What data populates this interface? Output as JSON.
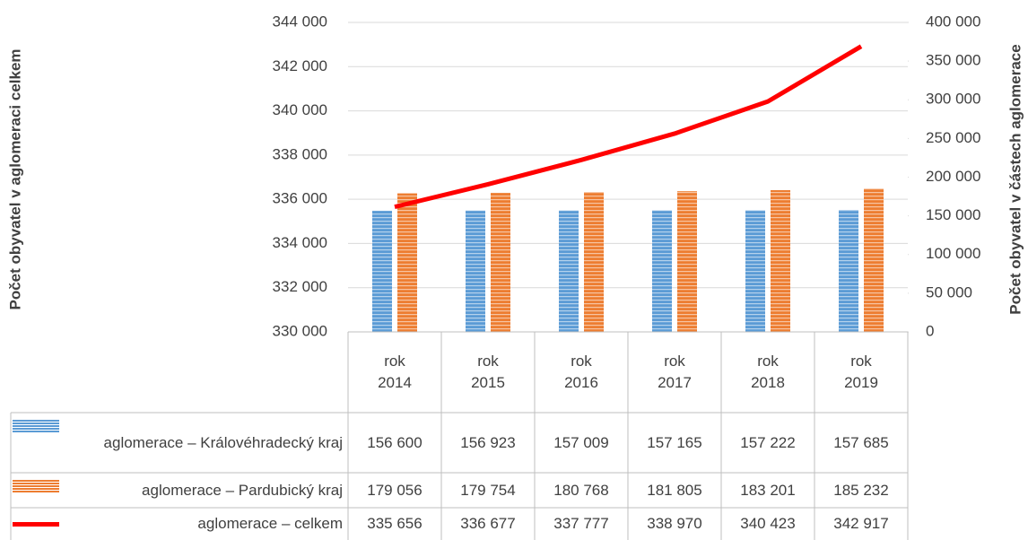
{
  "chart_data": {
    "type": "combo",
    "y_label": "Počet obyvatel v aglomeraci celkem",
    "y2_label": "Počet obyvatel v částech aglomerace",
    "categories": [
      "rok 2014",
      "rok 2015",
      "rok 2016",
      "rok 2017",
      "rok 2018",
      "rok 2019"
    ],
    "series": [
      {
        "name": "aglomerace – Královéhradecký kraj",
        "color": "#5b9bd5",
        "type": "bar",
        "axis": "y2",
        "values": [
          156600,
          156923,
          157009,
          157165,
          157222,
          157685
        ],
        "value_labels": [
          "156 600",
          "156 923",
          "157 009",
          "157 165",
          "157 222",
          "157 685"
        ]
      },
      {
        "name": "aglomerace – Pardubický kraj",
        "color": "#ed7d31",
        "type": "bar",
        "axis": "y2",
        "values": [
          179056,
          179754,
          180768,
          181805,
          183201,
          185232
        ],
        "value_labels": [
          "179 056",
          "179 754",
          "180 768",
          "181 805",
          "183 201",
          "185 232"
        ]
      },
      {
        "name": "aglomerace – celkem",
        "color": "#ff0000",
        "type": "line",
        "axis": "y",
        "values": [
          335656,
          336677,
          337777,
          338970,
          340423,
          342917
        ],
        "value_labels": [
          "335 656",
          "336 677",
          "337 777",
          "338 970",
          "340 423",
          "342 917"
        ]
      }
    ],
    "ylim": [
      330000,
      344000
    ],
    "yticks": [
      {
        "value": 330000,
        "label": "330 000"
      },
      {
        "value": 332000,
        "label": "332 000"
      },
      {
        "value": 334000,
        "label": "334 000"
      },
      {
        "value": 336000,
        "label": "336 000"
      },
      {
        "value": 338000,
        "label": "338 000"
      },
      {
        "value": 340000,
        "label": "340 000"
      },
      {
        "value": 342000,
        "label": "342 000"
      },
      {
        "value": 344000,
        "label": "344 000"
      }
    ],
    "y2lim": [
      0,
      400000
    ],
    "y2ticks": [
      0,
      {
        "value": 50000,
        "label": "50 000"
      },
      {
        "value": 100000,
        "label": "100 000"
      },
      {
        "value": 150000,
        "label": "150 000"
      },
      {
        "value": 200000,
        "label": "200 000"
      },
      {
        "value": 250000,
        "label": "250 000"
      },
      {
        "value": 300000,
        "label": "300 000"
      },
      {
        "value": 350000,
        "label": "350 000"
      },
      {
        "value": 400000,
        "label": "400 000"
      }
    ],
    "grid": true
  }
}
